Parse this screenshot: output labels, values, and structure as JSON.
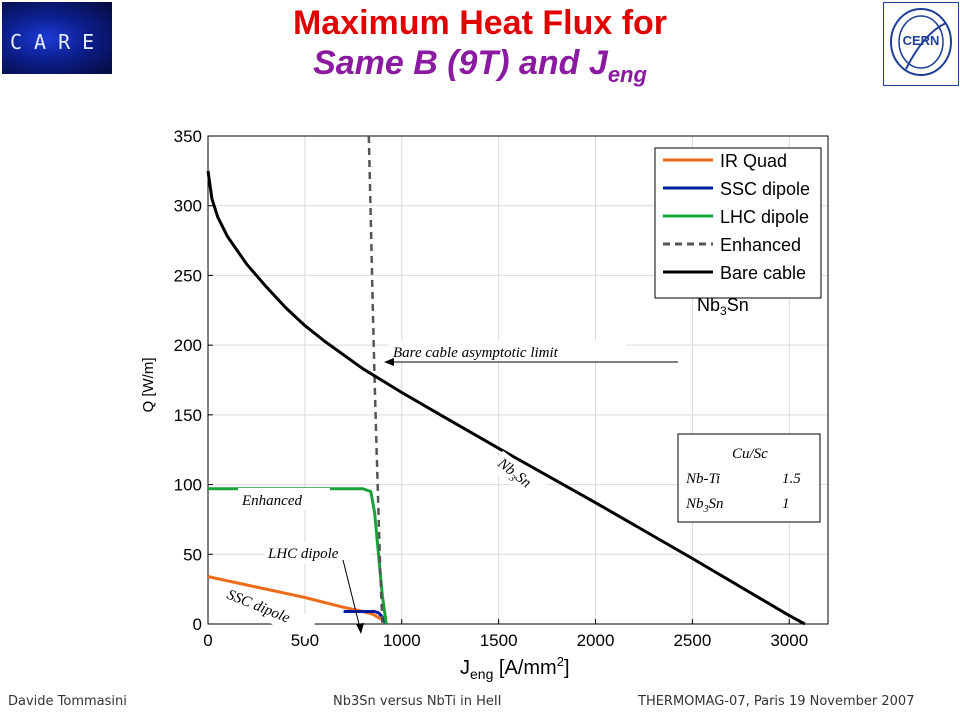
{
  "header": {
    "title_line1": "Maximum Heat Flux for",
    "title_line2_main": "Same B (9T) and J",
    "title_line2_sub": "eng",
    "care_logo_text": "CARE",
    "cern_logo_text": "CERN"
  },
  "footer": {
    "left": "Davide Tommasini",
    "center": "Nb3Sn versus NbTi in HeII",
    "right": "THERMOMAG-07, Paris 19 November 2007"
  },
  "chart_data": {
    "type": "line",
    "xlabel_main": "J",
    "xlabel_sub": "eng",
    "xlabel_unit": " [A/mm",
    "xlabel_sup": "2",
    "xlabel_end": "]",
    "ylabel": "Q [W/m]",
    "xlim": [
      0,
      3200
    ],
    "ylim": [
      0,
      350
    ],
    "xticks": [
      0,
      500,
      1000,
      1500,
      2000,
      2500,
      3000
    ],
    "yticks": [
      0,
      50,
      100,
      150,
      200,
      250,
      300,
      350
    ],
    "series": [
      {
        "name": "IR Quad",
        "color": "#ee6a1a",
        "style": "solid",
        "x": [
          0,
          100,
          200,
          300,
          400,
          500,
          600,
          700,
          800,
          850,
          900,
          920
        ],
        "y": [
          34,
          31,
          28,
          25,
          22,
          19,
          15.5,
          12,
          9,
          7,
          3,
          0
        ]
      },
      {
        "name": "SSC dipole",
        "color": "#001c9e",
        "style": "solid",
        "x": [
          700,
          780,
          860,
          880,
          900,
          920
        ],
        "y": [
          9,
          9,
          9,
          8,
          5,
          0
        ]
      },
      {
        "name": "LHC dipole",
        "color": "#19a23a",
        "style": "solid",
        "x": [
          0,
          200,
          400,
          600,
          800,
          840,
          860,
          880,
          900,
          920
        ],
        "y": [
          97,
          97,
          97,
          97,
          97,
          95,
          80,
          50,
          20,
          0
        ]
      },
      {
        "name": "Enhanced",
        "color": "#555555",
        "style": "dashed",
        "x": [
          830,
          840,
          850,
          860,
          870,
          880,
          890,
          900
        ],
        "y": [
          350,
          290,
          230,
          175,
          125,
          80,
          35,
          0
        ]
      },
      {
        "name": "Bare cable Nb3Sn",
        "color": "#000000",
        "style": "solid",
        "x": [
          0,
          20,
          50,
          100,
          200,
          300,
          400,
          500,
          600,
          800,
          1000,
          1200,
          1500,
          2000,
          2500,
          3000,
          3080
        ],
        "y": [
          325,
          305,
          292,
          278,
          258,
          242,
          227,
          214,
          203,
          183,
          166,
          150,
          126,
          87,
          47,
          6,
          0
        ]
      }
    ],
    "legend": {
      "placement": "top-right",
      "entries": [
        {
          "label": "IR Quad",
          "color": "#ee6a1a",
          "style": "solid"
        },
        {
          "label": "SSC dipole",
          "color": "#001c9e",
          "style": "solid"
        },
        {
          "label": "LHC dipole",
          "color": "#19a23a",
          "style": "solid"
        },
        {
          "label": "Enhanced",
          "color": "#555555",
          "style": "dashed"
        },
        {
          "label": "Bare cable",
          "color": "#000000",
          "style": "solid"
        }
      ],
      "extra_line_main": "Nb",
      "extra_line_sub": "3",
      "extra_line_end": "Sn"
    },
    "annotations": {
      "asymptotic": "Bare cable asymptotic limit",
      "nb3sn_main": "Nb",
      "nb3sn_sub": "3",
      "nb3sn_end": "Sn",
      "enhanced": "Enhanced",
      "lhc_dipole": "LHC dipole",
      "ssc_dipole": "SSC dipole"
    },
    "cu_sc_box": {
      "header": "Cu/Sc",
      "row1_label": "Nb-Ti",
      "row1_value": "1.5",
      "row2_label_main": "Nb",
      "row2_label_sub": "3",
      "row2_label_end": "Sn",
      "row2_value": "1"
    }
  }
}
